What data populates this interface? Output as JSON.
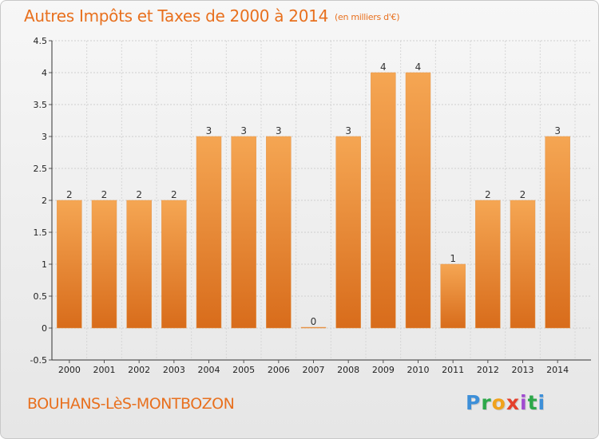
{
  "title": "Autres Impôts et Taxes de 2000 à 2014",
  "unit": "(en milliers d'€)",
  "commune": "BOUHANS-LèS-MONTBOZON",
  "logo": [
    "P",
    "r",
    "o",
    "x",
    "i",
    "t",
    "i"
  ],
  "colors": {
    "accent": "#e8701e",
    "bar_top": "#f5a653",
    "bar_bottom": "#d86c1b"
  },
  "chart_data": {
    "type": "bar",
    "categories": [
      "2000",
      "2001",
      "2002",
      "2003",
      "2004",
      "2005",
      "2006",
      "2007",
      "2008",
      "2009",
      "2010",
      "2011",
      "2012",
      "2013",
      "2014"
    ],
    "values": [
      2,
      2,
      2,
      2,
      3,
      3,
      3,
      0,
      3,
      4,
      4,
      1,
      2,
      2,
      3
    ],
    "data_labels": [
      "2",
      "2",
      "2",
      "2",
      "3",
      "3",
      "3",
      "0",
      "3",
      "4",
      "4",
      "1",
      "2",
      "2",
      "3"
    ],
    "ylim": [
      -0.5,
      4.5
    ],
    "yticks": [
      "4.5",
      "4",
      "3.5",
      "3",
      "2.5",
      "2",
      "1.5",
      "1",
      "0.5",
      "0",
      "-0.5"
    ],
    "ytick_values": [
      4.5,
      4,
      3.5,
      3,
      2.5,
      2,
      1.5,
      1,
      0.5,
      0,
      -0.5
    ],
    "grid": true,
    "xlabel": "",
    "ylabel": ""
  }
}
